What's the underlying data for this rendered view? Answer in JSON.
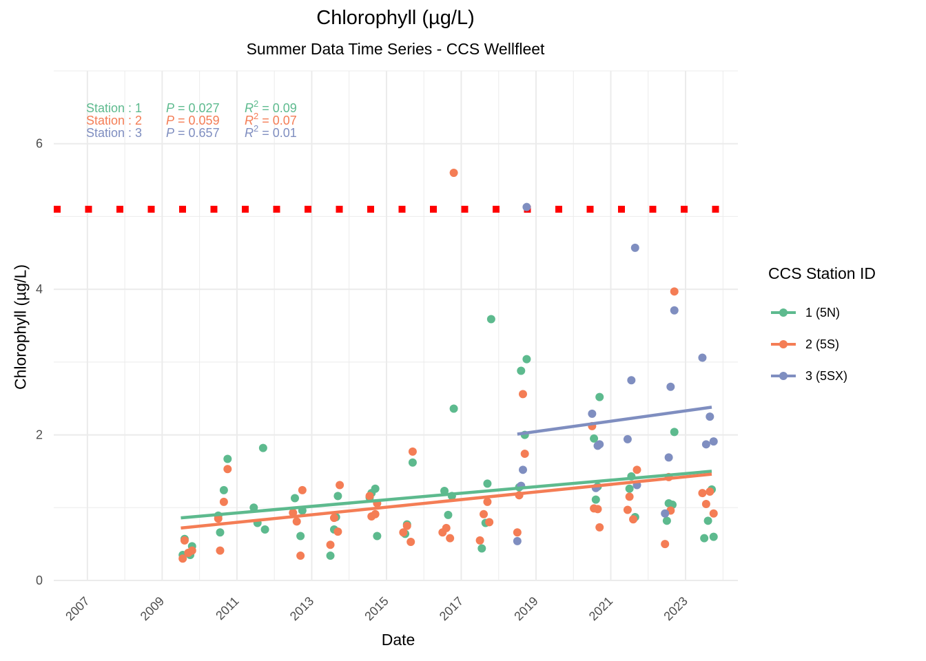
{
  "chart_data": {
    "type": "scatter",
    "title": "Chlorophyll (µg/L)",
    "subtitle": "Summer Data Time Series - CCS Wellfleet",
    "xlabel": "Date",
    "ylabel": "Chlorophyll (µg/L)",
    "xlim": [
      2006.1,
      2024.4
    ],
    "ylim": [
      0,
      7
    ],
    "y_ticks": [
      0,
      2,
      4,
      6
    ],
    "x_ticks": [
      "2007",
      "2009",
      "2011",
      "2013",
      "2015",
      "2017",
      "2019",
      "2021",
      "2023"
    ],
    "grid": true,
    "legend_title": "CCS Station ID",
    "legend_position": "right",
    "reference_line": {
      "y": 5.1,
      "color": "#ff0000",
      "style": "dotted-square"
    },
    "annotations": [
      {
        "station": "Station : 1",
        "p": "P = 0.027",
        "r2_base": "R",
        "r2_sup": "2",
        "r2_value": " = 0.09",
        "color": "#5dba8e"
      },
      {
        "station": "Station : 2",
        "p": "P = 0.059",
        "r2_base": "R",
        "r2_sup": "2",
        "r2_value": " = 0.07",
        "color": "#f47d55"
      },
      {
        "station": "Station : 3",
        "p": "P = 0.657",
        "r2_base": "R",
        "r2_sup": "2",
        "r2_value": " = 0.01",
        "color": "#7f8ec0"
      }
    ],
    "series": [
      {
        "name": "1 (5N)",
        "color": "#5dba8e",
        "trend": {
          "x": [
            2009.5,
            2023.7
          ],
          "y": [
            0.86,
            1.5
          ]
        },
        "points": [
          [
            2009.55,
            0.35
          ],
          [
            2009.6,
            0.57
          ],
          [
            2009.75,
            0.35
          ],
          [
            2009.8,
            0.47
          ],
          [
            2010.5,
            0.89
          ],
          [
            2010.55,
            0.66
          ],
          [
            2010.65,
            1.24
          ],
          [
            2010.75,
            1.67
          ],
          [
            2011.45,
            1.0
          ],
          [
            2011.55,
            0.79
          ],
          [
            2011.7,
            1.82
          ],
          [
            2011.75,
            0.7
          ],
          [
            2012.55,
            1.13
          ],
          [
            2012.7,
            0.61
          ],
          [
            2012.75,
            0.96
          ],
          [
            2013.5,
            0.34
          ],
          [
            2013.6,
            0.7
          ],
          [
            2013.65,
            0.87
          ],
          [
            2013.7,
            1.16
          ],
          [
            2014.55,
            1.14
          ],
          [
            2014.6,
            1.2
          ],
          [
            2014.7,
            1.26
          ],
          [
            2014.75,
            0.61
          ],
          [
            2015.5,
            0.64
          ],
          [
            2015.55,
            0.77
          ],
          [
            2015.7,
            1.62
          ],
          [
            2016.55,
            1.23
          ],
          [
            2016.65,
            0.9
          ],
          [
            2016.75,
            1.16
          ],
          [
            2016.8,
            2.36
          ],
          [
            2017.55,
            0.44
          ],
          [
            2017.65,
            0.79
          ],
          [
            2017.7,
            1.33
          ],
          [
            2017.8,
            3.59
          ],
          [
            2018.55,
            1.28
          ],
          [
            2018.6,
            2.88
          ],
          [
            2018.7,
            2.0
          ],
          [
            2018.75,
            3.04
          ],
          [
            2020.55,
            1.95
          ],
          [
            2020.6,
            1.11
          ],
          [
            2020.65,
            1.29
          ],
          [
            2020.7,
            2.52
          ],
          [
            2021.5,
            1.26
          ],
          [
            2021.55,
            1.43
          ],
          [
            2021.65,
            0.87
          ],
          [
            2022.5,
            0.82
          ],
          [
            2022.55,
            1.06
          ],
          [
            2022.65,
            1.04
          ],
          [
            2022.7,
            2.04
          ],
          [
            2023.5,
            0.58
          ],
          [
            2023.6,
            0.82
          ],
          [
            2023.7,
            1.25
          ],
          [
            2023.75,
            0.6
          ]
        ]
      },
      {
        "name": "2 (5S)",
        "color": "#f47d55",
        "trend": {
          "x": [
            2009.5,
            2023.7
          ],
          "y": [
            0.72,
            1.46
          ]
        },
        "points": [
          [
            2009.55,
            0.3
          ],
          [
            2009.6,
            0.55
          ],
          [
            2009.7,
            0.38
          ],
          [
            2009.8,
            0.41
          ],
          [
            2010.5,
            0.85
          ],
          [
            2010.55,
            0.41
          ],
          [
            2010.65,
            1.08
          ],
          [
            2010.75,
            1.53
          ],
          [
            2012.5,
            0.93
          ],
          [
            2012.6,
            0.81
          ],
          [
            2012.7,
            0.34
          ],
          [
            2012.75,
            1.24
          ],
          [
            2013.5,
            0.49
          ],
          [
            2013.6,
            0.86
          ],
          [
            2013.7,
            0.67
          ],
          [
            2013.75,
            1.31
          ],
          [
            2014.55,
            1.16
          ],
          [
            2014.6,
            0.88
          ],
          [
            2014.7,
            0.91
          ],
          [
            2014.75,
            1.06
          ],
          [
            2015.45,
            0.66
          ],
          [
            2015.55,
            0.75
          ],
          [
            2015.65,
            0.53
          ],
          [
            2015.7,
            1.77
          ],
          [
            2016.5,
            0.66
          ],
          [
            2016.6,
            0.72
          ],
          [
            2016.7,
            0.58
          ],
          [
            2016.8,
            5.6
          ],
          [
            2017.5,
            0.55
          ],
          [
            2017.6,
            0.91
          ],
          [
            2017.7,
            1.08
          ],
          [
            2017.75,
            0.8
          ],
          [
            2018.5,
            0.66
          ],
          [
            2018.55,
            1.17
          ],
          [
            2018.65,
            2.56
          ],
          [
            2018.7,
            1.74
          ],
          [
            2020.5,
            2.12
          ],
          [
            2020.55,
            0.99
          ],
          [
            2020.65,
            0.98
          ],
          [
            2020.7,
            0.73
          ],
          [
            2021.45,
            0.97
          ],
          [
            2021.5,
            1.15
          ],
          [
            2021.6,
            0.84
          ],
          [
            2021.7,
            1.52
          ],
          [
            2022.45,
            0.5
          ],
          [
            2022.55,
            1.42
          ],
          [
            2022.6,
            0.96
          ],
          [
            2022.7,
            3.97
          ],
          [
            2023.45,
            1.2
          ],
          [
            2023.55,
            1.05
          ],
          [
            2023.65,
            1.22
          ],
          [
            2023.75,
            0.92
          ]
        ]
      },
      {
        "name": "3 (5SX)",
        "color": "#7f8ec0",
        "trend": {
          "x": [
            2018.5,
            2023.7
          ],
          "y": [
            2.01,
            2.38
          ]
        },
        "points": [
          [
            2018.5,
            0.54
          ],
          [
            2018.6,
            1.3
          ],
          [
            2018.65,
            1.52
          ],
          [
            2018.75,
            5.13
          ],
          [
            2020.5,
            2.29
          ],
          [
            2020.6,
            1.27
          ],
          [
            2020.65,
            1.85
          ],
          [
            2020.7,
            1.87
          ],
          [
            2021.45,
            1.94
          ],
          [
            2021.55,
            2.75
          ],
          [
            2021.65,
            4.57
          ],
          [
            2021.7,
            1.31
          ],
          [
            2022.45,
            0.92
          ],
          [
            2022.55,
            1.69
          ],
          [
            2022.6,
            2.66
          ],
          [
            2022.7,
            3.71
          ],
          [
            2023.45,
            3.06
          ],
          [
            2023.55,
            1.87
          ],
          [
            2023.65,
            2.25
          ],
          [
            2023.75,
            1.91
          ]
        ]
      }
    ]
  }
}
